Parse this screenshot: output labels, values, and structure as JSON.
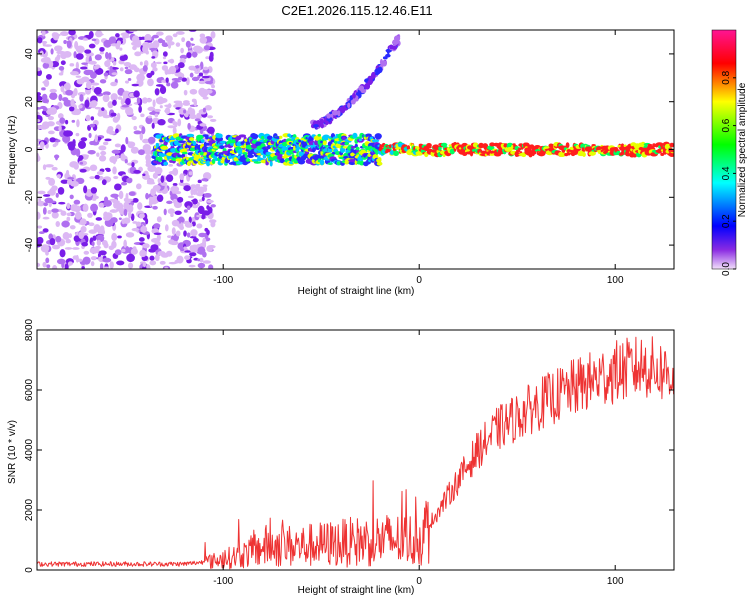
{
  "title": "C2E1.2026.115.12.46.E11",
  "chart_data": [
    {
      "type": "heatmap",
      "name": "spectrogram",
      "xlabel": "Height of straight line (km)",
      "ylabel": "Frequency (Hz)",
      "xlim": [
        -195,
        130
      ],
      "ylim": [
        -50,
        50
      ],
      "xticks": [
        -100,
        0,
        100
      ],
      "yticks": [
        -40,
        -20,
        0,
        20,
        40
      ],
      "colorbar": {
        "label": "Normalized spectral amplitude",
        "range": [
          0,
          1
        ],
        "ticks": [
          0.0,
          0.2,
          0.4,
          0.6,
          0.8
        ],
        "tick_labels": [
          "0.0",
          "0.2",
          "0.4",
          "0.6",
          "0.8"
        ]
      },
      "features": [
        {
          "name": "noise-field",
          "x_range": [
            -195,
            -105
          ],
          "freq_range": [
            -50,
            50
          ]
        },
        {
          "name": "main-line",
          "x_range": [
            -135,
            130
          ],
          "freq": 0
        },
        {
          "name": "rising-branch",
          "x_start": -55,
          "x_end": -10,
          "freq_start": 10,
          "freq_end": 47
        }
      ]
    },
    {
      "type": "line",
      "name": "snr",
      "xlabel": "Height of straight line (km)",
      "ylabel": "SNR (10 * v/v)",
      "xlim": [
        -195,
        130
      ],
      "ylim": [
        0,
        8000
      ],
      "xticks": [
        -100,
        0,
        100
      ],
      "yticks": [
        0,
        2000,
        4000,
        6000,
        8000
      ],
      "color": "#ee3333",
      "series": [
        {
          "name": "SNR",
          "x": [
            -195,
            -120,
            -105,
            -90,
            -78,
            -60,
            -40,
            -20,
            0,
            10,
            20,
            30,
            40,
            60,
            80,
            100,
            115,
            130
          ],
          "values": [
            200,
            200,
            300,
            500,
            800,
            800,
            900,
            1000,
            1000,
            2000,
            3000,
            4000,
            4700,
            5500,
            6100,
            6600,
            6800,
            6500
          ]
        }
      ]
    }
  ]
}
